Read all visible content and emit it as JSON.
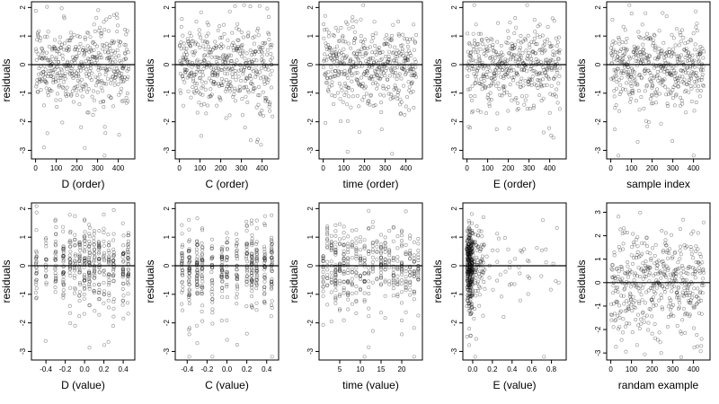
{
  "chart_data": [
    {
      "type": "scatter",
      "xlabel": "D (order)",
      "ylabel": "residuals",
      "xlim": [
        -20,
        480
      ],
      "ylim": [
        -3.3,
        2.2
      ],
      "xticks": [
        0,
        100,
        200,
        300,
        400
      ],
      "yticks": [
        -3,
        -2,
        -1,
        0,
        1,
        2
      ],
      "ref_line_y": 0,
      "x": "index 1..450",
      "sample_size": 450,
      "y_noise": "residuals approx N(0,0.7)"
    },
    {
      "type": "scatter",
      "xlabel": "C (order)",
      "ylabel": "residuals",
      "xlim": [
        -20,
        480
      ],
      "ylim": [
        -3.3,
        2.2
      ],
      "xticks": [
        0,
        100,
        200,
        300,
        400
      ],
      "yticks": [
        -3,
        -2,
        -1,
        0,
        1,
        2
      ],
      "ref_line_y": 0,
      "x": "index 1..450",
      "sample_size": 450
    },
    {
      "type": "scatter",
      "xlabel": "time (order)",
      "ylabel": "residuals",
      "xlim": [
        -20,
        480
      ],
      "ylim": [
        -3.3,
        2.2
      ],
      "xticks": [
        0,
        100,
        200,
        300,
        400
      ],
      "yticks": [
        -3,
        -2,
        -1,
        0,
        1,
        2
      ],
      "ref_line_y": 0,
      "x": "index 1..450",
      "sample_size": 450
    },
    {
      "type": "scatter",
      "xlabel": "E (order)",
      "ylabel": "residuals",
      "xlim": [
        -20,
        480
      ],
      "ylim": [
        -3.3,
        2.2
      ],
      "xticks": [
        0,
        100,
        200,
        300,
        400
      ],
      "yticks": [
        -3,
        -2,
        -1,
        0,
        1,
        2
      ],
      "ref_line_y": 0,
      "x": "index 1..450",
      "sample_size": 450
    },
    {
      "type": "scatter",
      "xlabel": "sample index",
      "ylabel": "residuals",
      "xlim": [
        -20,
        480
      ],
      "ylim": [
        -3.3,
        2.2
      ],
      "xticks": [
        0,
        100,
        200,
        300,
        400
      ],
      "yticks": [
        -3,
        -2,
        -1,
        0,
        1,
        2
      ],
      "ref_line_y": 0,
      "x": "index 1..450",
      "sample_size": 450
    },
    {
      "type": "scatter",
      "xlabel": "D (value)",
      "ylabel": "residuals",
      "xlim": [
        -0.55,
        0.52
      ],
      "ylim": [
        -3.3,
        2.2
      ],
      "xticks": [
        -0.4,
        -0.2,
        0.0,
        0.2,
        0.4
      ],
      "xticklabels": [
        "-0.4",
        "-0.2",
        "0.0",
        "0.2",
        "0.4"
      ],
      "yticks": [
        -3,
        -2,
        -1,
        0,
        1,
        2
      ],
      "ref_line_y": 0,
      "x_values": [
        -0.5,
        -0.4,
        -0.3,
        -0.22,
        -0.15,
        -0.1,
        -0.05,
        0.0,
        0.05,
        0.1,
        0.15,
        0.2,
        0.25,
        0.3,
        0.4,
        0.45
      ],
      "sample_size": 450
    },
    {
      "type": "scatter",
      "xlabel": "C (value)",
      "ylabel": "residuals",
      "xlim": [
        -0.52,
        0.52
      ],
      "ylim": [
        -3.3,
        2.2
      ],
      "xticks": [
        -0.4,
        -0.2,
        0.0,
        0.2,
        0.4
      ],
      "xticklabels": [
        "-0.4",
        "-0.2",
        "0.0",
        "0.2",
        "0.4"
      ],
      "yticks": [
        -3,
        -2,
        -1,
        0,
        1,
        2
      ],
      "ref_line_y": 0,
      "x_values": [
        -0.45,
        -0.38,
        -0.3,
        -0.25,
        -0.15,
        -0.05,
        0.0,
        0.1,
        0.2,
        0.25,
        0.3,
        0.38,
        0.45
      ],
      "sample_size": 450
    },
    {
      "type": "scatter",
      "xlabel": "time (value)",
      "ylabel": "residuals",
      "xlim": [
        0,
        25
      ],
      "ylim": [
        -3.3,
        2.2
      ],
      "xticks": [
        5,
        10,
        15,
        20
      ],
      "yticks": [
        -3,
        -2,
        -1,
        0,
        1,
        2
      ],
      "ref_line_y": 0,
      "x_values": "integers 1..24",
      "sample_size": 450
    },
    {
      "type": "scatter",
      "xlabel": "E (value)",
      "ylabel": "residuals",
      "xlim": [
        -0.1,
        0.95
      ],
      "ylim": [
        -3.3,
        2.2
      ],
      "xticks": [
        0.0,
        0.2,
        0.4,
        0.6,
        0.8
      ],
      "xticklabels": [
        "0.0",
        "0.2",
        "0.4",
        "0.6",
        "0.8"
      ],
      "yticks": [
        -3,
        -2,
        -1,
        0,
        1,
        2
      ],
      "ref_line_y": 0,
      "x_distribution": "concentrated near -0.05..0.05, sparse to 0.9",
      "sample_size": 450
    },
    {
      "type": "scatter",
      "xlabel": "randam example",
      "ylabel": "residuals",
      "xlim": [
        -20,
        480
      ],
      "ylim": [
        -3.3,
        3.4
      ],
      "xticks": [
        0,
        100,
        200,
        300,
        400
      ],
      "yticks": [
        -3,
        -2,
        -1,
        0,
        1,
        2,
        3
      ],
      "ref_line_y": 0,
      "x": "index 1..450",
      "sample_size": 450,
      "y_noise": "residuals approx N(0,1.1)"
    }
  ]
}
